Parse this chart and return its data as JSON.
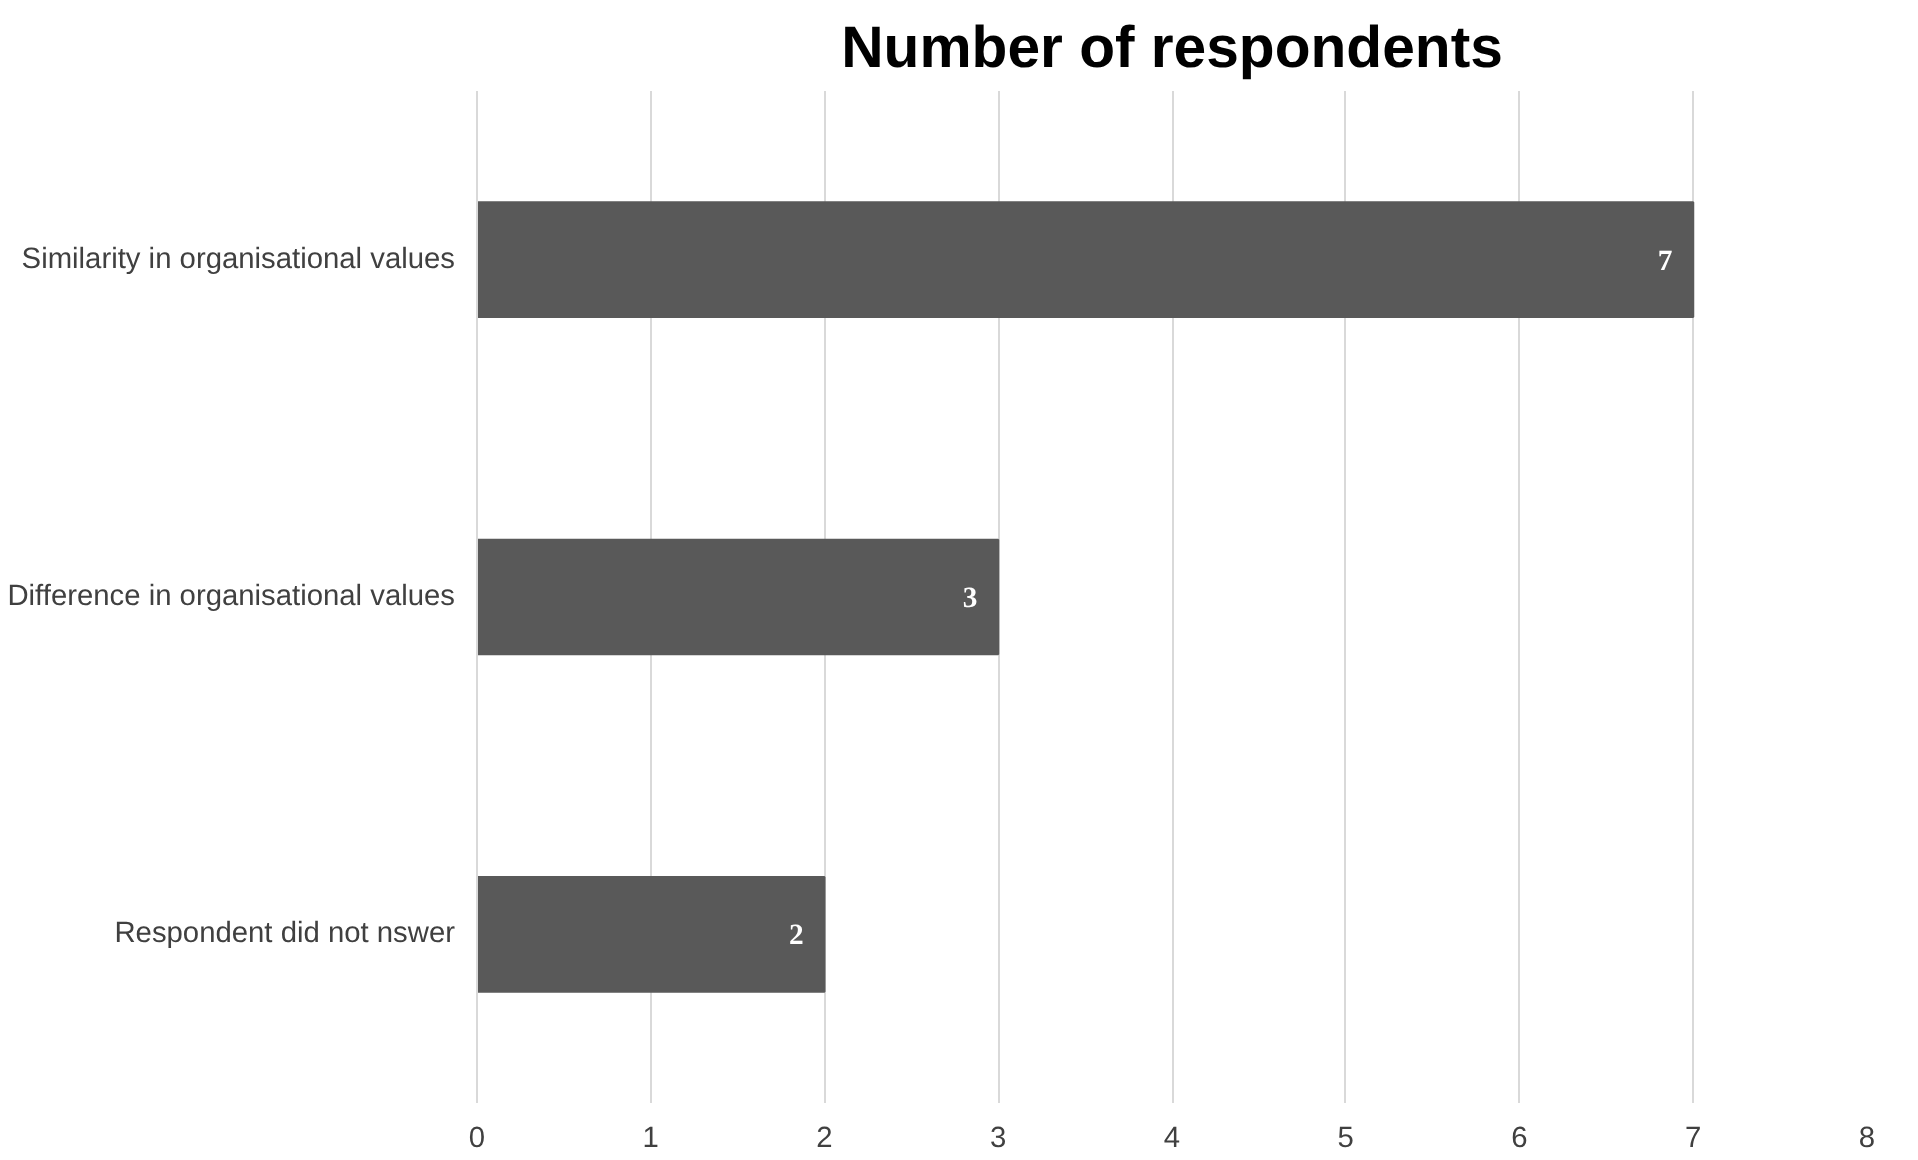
{
  "chart_data": {
    "type": "bar",
    "orientation": "horizontal",
    "title": "Number of respondents",
    "categories": [
      "Similarity in organisational values",
      "Difference in organisational values",
      "Respondent did not nswer"
    ],
    "values": [
      7,
      3,
      2
    ],
    "color": "#595959",
    "xlim": [
      0,
      8
    ],
    "xticks": [
      0,
      1,
      2,
      3,
      4,
      5,
      6,
      7,
      8
    ],
    "grid": "x",
    "data_labels": true
  }
}
